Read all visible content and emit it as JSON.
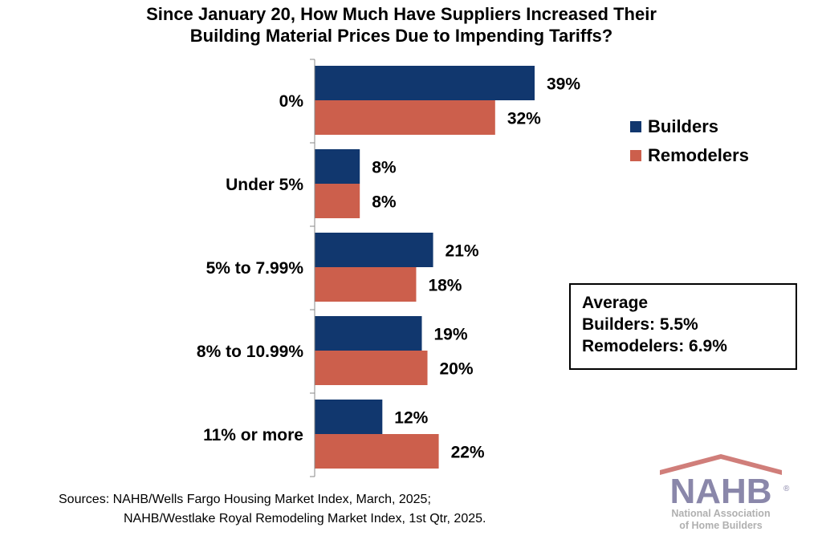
{
  "chart_data": {
    "type": "bar",
    "orientation": "horizontal",
    "title": "Since January 20, How Much Have Suppliers Increased Their Building Material Prices Due to Impending Tariffs?",
    "title_lines": [
      "Since January 20, How Much Have Suppliers Increased Their",
      "Building Material Prices Due to Impending Tariffs?"
    ],
    "categories": [
      "0%",
      "Under 5%",
      "5% to 7.99%",
      "8% to 10.99%",
      "11% or more"
    ],
    "series": [
      {
        "name": "Builders",
        "color": "#11376e",
        "values": [
          39,
          8,
          21,
          19,
          12
        ],
        "labels": [
          "39%",
          "8%",
          "21%",
          "19%",
          "12%"
        ]
      },
      {
        "name": "Remodelers",
        "color": "#cc5f4c",
        "values": [
          32,
          8,
          18,
          20,
          22
        ],
        "labels": [
          "32%",
          "8%",
          "18%",
          "20%",
          "22%"
        ]
      }
    ],
    "xlim": [
      0,
      45
    ],
    "legend_position": "right",
    "grid": false,
    "annotation": {
      "heading": "Average",
      "lines": [
        "Builders: 5.5%",
        "Remodelers: 6.9%"
      ]
    }
  },
  "sources": [
    "Sources: NAHB/Wells Fargo Housing Market Index, March, 2025;",
    "NAHB/Westlake Royal Remodeling Market Index, 1st Qtr, 2025."
  ],
  "logo": {
    "wordmark": "NAHB",
    "tagline": [
      "National Association",
      "of Home Builders"
    ],
    "color": "#8a87aa",
    "roof_color": "#d07e7a"
  }
}
